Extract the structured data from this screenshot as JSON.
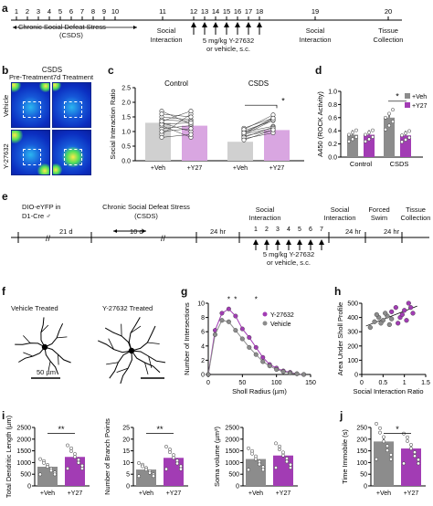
{
  "panels": {
    "a": {
      "label": "a",
      "timeline_days": [
        "1",
        "2",
        "3",
        "4",
        "5",
        "6",
        "7",
        "8",
        "9",
        "10",
        "11",
        "12",
        "13",
        "14",
        "15",
        "16",
        "17",
        "18",
        "19",
        "20"
      ],
      "csds_label": "Chronic Social Defeat Stress",
      "csds_abbr": "(CSDS)",
      "social_interaction_1": "Social",
      "social_interaction_1b": "Interaction",
      "dose": "5 mg/kg Y-27632",
      "dose2": "or vehicle, s.c.",
      "social_interaction_2": "Social",
      "social_interaction_2b": "Interaction",
      "tissue": "Tissue",
      "tissue2": "Collection"
    },
    "b": {
      "label": "b",
      "title": "CSDS",
      "col1": "Pre-Treatment",
      "col2": "7d Treatment",
      "row1": "Vehicle",
      "row2": "Y-27632"
    },
    "c": {
      "label": "c",
      "ylabel": "Social Interaction Ratio",
      "sub1": "Control",
      "sub2": "CSDS",
      "yticks": [
        "0.0",
        "0.5",
        "1.0",
        "1.5",
        "2.0",
        "2.5"
      ],
      "x1": "+Veh",
      "x2": "+Y27",
      "sig": "*"
    },
    "d": {
      "label": "d",
      "ylabel": "A450  (ROCK Activity)",
      "yticks": [
        "0.0",
        "0.2",
        "0.4",
        "0.6",
        "0.8",
        "1.0"
      ],
      "legend": [
        "+Veh",
        "+Y27"
      ],
      "xgroups": [
        "Control",
        "CSDS"
      ],
      "sig": "*",
      "colors": {
        "veh": "#8c8c8c",
        "y27": "#a23cb4"
      }
    },
    "e": {
      "label": "e",
      "dio": "DIO-eYFP in",
      "d1": "D1-Cre ♂",
      "d21": "21 d",
      "csds": "Chronic Social Defeat Stress",
      "csds_abbr": "(CSDS)",
      "d10": "10 d",
      "hr24a": "24 hr",
      "social": "Social",
      "interaction": "Interaction",
      "days": [
        "1",
        "2",
        "3",
        "4",
        "5",
        "6",
        "7"
      ],
      "dose": "5 mg/kg Y-27632",
      "dose2": "or vehicle, s.c.",
      "social2": "Social",
      "interaction2": "Interaction",
      "hr24b": "24 hr",
      "forced": "Forced",
      "swim": "Swim",
      "hr24c": "24 hr",
      "tissue": "Tissue",
      "collection": "Collection"
    },
    "f": {
      "label": "f",
      "left": "Vehicle Treated",
      "right": "Y-27632 Treated",
      "scale": "50 µm"
    },
    "g": {
      "label": "g",
      "ylabel": "Number of Intersections",
      "xlabel": "Sholl Radius (µm)",
      "legend": [
        "Y-27632",
        "Vehicle"
      ],
      "yticks": [
        "0",
        "2",
        "4",
        "6",
        "8",
        "10"
      ],
      "xticks": [
        "0",
        "50",
        "100",
        "150"
      ],
      "sig": "*"
    },
    "h": {
      "label": "h",
      "ylabel": "Area Under Sholl Profile",
      "xlabel": "Social Interaction Ratio",
      "yticks": [
        "0",
        "100",
        "200",
        "300",
        "400",
        "500"
      ],
      "xticks": [
        "0",
        "0.5",
        "1",
        "1.5"
      ]
    },
    "i": {
      "label": "i",
      "p1": {
        "ylabel": "Total Dendritic Length (µm)",
        "yticks": [
          "0",
          "500",
          "1000",
          "1500",
          "2000",
          "2500"
        ],
        "sig": "**"
      },
      "p2": {
        "ylabel": "Number of Branch Points",
        "yticks": [
          "0",
          "5",
          "10",
          "15",
          "20",
          "25"
        ],
        "sig": "**"
      },
      "p3": {
        "ylabel": "Soma volume (µm³)",
        "yticks": [
          "0",
          "500",
          "1000",
          "1500",
          "2000",
          "2500"
        ],
        "sig": ""
      },
      "x1": "+Veh",
      "x2": "+Y27"
    },
    "j": {
      "label": "j",
      "ylabel": "Time Immobile (s)",
      "yticks": [
        "0",
        "50",
        "100",
        "150",
        "200",
        "250"
      ],
      "sig": "*",
      "x1": "+Veh",
      "x2": "+Y27"
    }
  },
  "chart_data": [
    {
      "panel": "c",
      "type": "bar",
      "title": "Control",
      "categories": [
        "+Veh",
        "+Y27"
      ],
      "values": [
        1.3,
        1.2
      ],
      "ylabel": "Social Interaction Ratio",
      "ylim": [
        0,
        2.5
      ]
    },
    {
      "panel": "c",
      "type": "bar",
      "title": "CSDS",
      "categories": [
        "+Veh",
        "+Y27"
      ],
      "values": [
        0.65,
        1.05
      ],
      "ylabel": "Social Interaction Ratio",
      "ylim": [
        0,
        2.5
      ]
    },
    {
      "panel": "d",
      "type": "bar",
      "categories": [
        "Control",
        "CSDS"
      ],
      "ylabel": "A450  (ROCK Activity)",
      "ylim": [
        0,
        1.0
      ],
      "series": [
        {
          "name": "+Veh",
          "values": [
            0.34,
            0.6
          ]
        },
        {
          "name": "+Y27",
          "values": [
            0.34,
            0.33
          ]
        }
      ]
    },
    {
      "panel": "g",
      "type": "line",
      "xlabel": "Sholl Radius (µm)",
      "ylabel": "Number of Intersections",
      "ylim": [
        0,
        10
      ],
      "xlim": [
        0,
        150
      ],
      "x": [
        0,
        10,
        20,
        30,
        40,
        50,
        60,
        70,
        80,
        90,
        100,
        110,
        120,
        130,
        140
      ],
      "series": [
        {
          "name": "Y-27632",
          "values": [
            0,
            6.2,
            8.6,
            9.2,
            8.2,
            6.4,
            5.2,
            3.8,
            2.4,
            1.4,
            0.9,
            0.5,
            0.3,
            0.1,
            0
          ]
        },
        {
          "name": "Vehicle",
          "values": [
            0,
            5.6,
            7.6,
            7.4,
            6.2,
            5.0,
            3.8,
            2.8,
            1.8,
            1.2,
            0.7,
            0.4,
            0.2,
            0.1,
            0
          ]
        }
      ]
    },
    {
      "panel": "h",
      "type": "scatter",
      "xlabel": "Social Interaction Ratio",
      "ylabel": "Area Under Sholl Profile",
      "ylim": [
        0,
        500
      ],
      "xlim": [
        0,
        1.5
      ],
      "series": [
        {
          "name": "Vehicle",
          "points": [
            [
              0.2,
              330
            ],
            [
              0.3,
              370
            ],
            [
              0.4,
              400
            ],
            [
              0.5,
              380
            ],
            [
              0.6,
              410
            ],
            [
              0.45,
              360
            ],
            [
              0.7,
              390
            ],
            [
              0.35,
              420
            ],
            [
              0.55,
              430
            ],
            [
              0.65,
              350
            ]
          ]
        },
        {
          "name": "Y-27632",
          "points": [
            [
              0.7,
              440
            ],
            [
              0.8,
              470
            ],
            [
              0.9,
              400
            ],
            [
              1.0,
              450
            ],
            [
              1.1,
              500
            ],
            [
              1.05,
              380
            ],
            [
              0.95,
              420
            ],
            [
              1.2,
              430
            ],
            [
              0.85,
              360
            ],
            [
              1.15,
              470
            ]
          ]
        }
      ]
    },
    {
      "panel": "i1",
      "type": "bar",
      "categories": [
        "+Veh",
        "+Y27"
      ],
      "values": [
        820,
        1240
      ],
      "ylabel": "Total Dendritic Length (µm)",
      "ylim": [
        0,
        2500
      ]
    },
    {
      "panel": "i2",
      "type": "bar",
      "categories": [
        "+Veh",
        "+Y27"
      ],
      "values": [
        7,
        12
      ],
      "ylabel": "Number of Branch Points",
      "ylim": [
        0,
        25
      ]
    },
    {
      "panel": "i3",
      "type": "bar",
      "categories": [
        "+Veh",
        "+Y27"
      ],
      "values": [
        1150,
        1300
      ],
      "ylabel": "Soma volume (µm³)",
      "ylim": [
        0,
        2500
      ]
    },
    {
      "panel": "j",
      "type": "bar",
      "categories": [
        "+Veh",
        "+Y27"
      ],
      "values": [
        190,
        160
      ],
      "ylabel": "Time Immobile (s)",
      "ylim": [
        0,
        250
      ]
    }
  ],
  "colors": {
    "veh": "#8c8c8c",
    "y27": "#a23cb4",
    "y27_light": "#d9a6e1"
  }
}
